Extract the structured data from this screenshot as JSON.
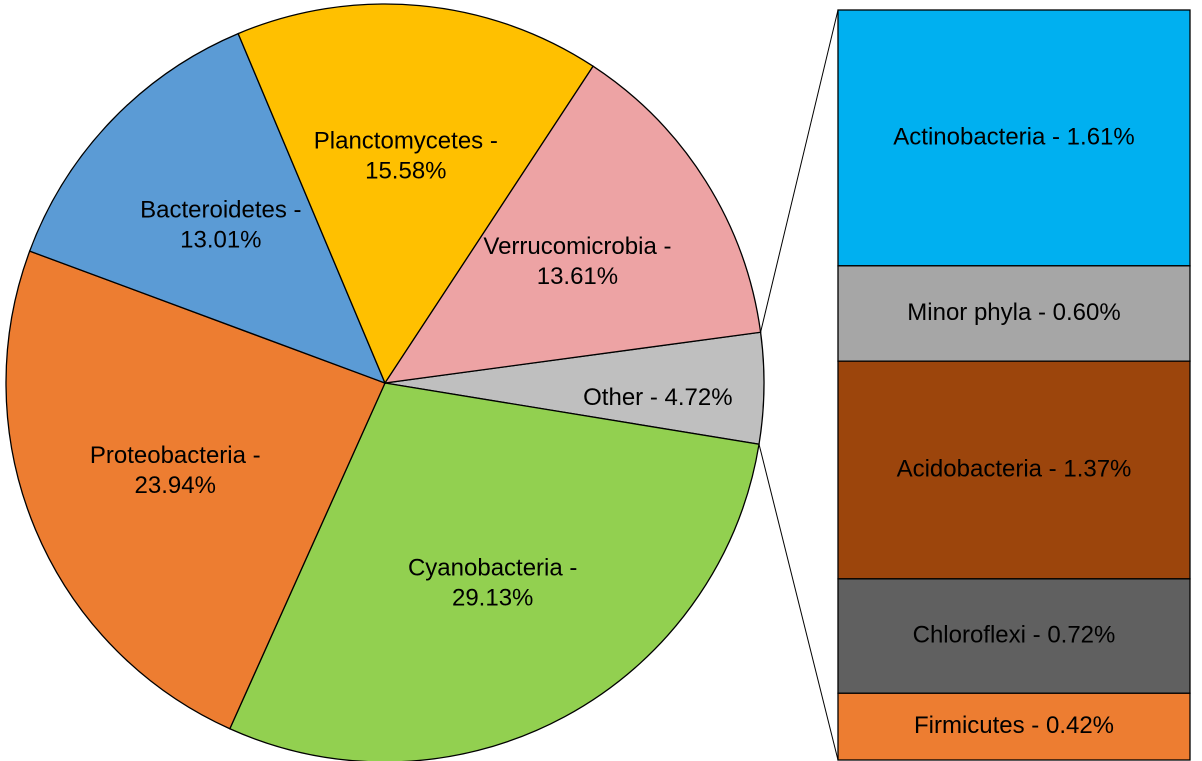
{
  "chart_data": [
    {
      "type": "pie",
      "values": [
        4.72,
        29.13,
        23.94,
        13.01,
        15.58,
        13.61
      ],
      "value_labels": [
        "Other - 4.72%",
        "Cyanobacteria - 29.13%",
        "Proteobacteria - 23.94%",
        "Bacteroidetes - 13.01%",
        "Planctomycetes - 15.58%",
        "Verrucomicrobia - 13.61%"
      ],
      "colors": [
        "#bfbfbf",
        "#92d050",
        "#ed7d31",
        "#5b9bd5",
        "#ffc000",
        "#eda3a4"
      ]
    },
    {
      "type": "bar",
      "values": [
        1.61,
        0.6,
        1.37,
        0.72,
        0.42
      ],
      "value_labels": [
        "Actinobacteria - 1.61%",
        "Minor phyla - 0.60%",
        "Acidobacteria - 1.37%",
        "Chloroflexi - 0.72%",
        "Firmicutes - 0.42%"
      ],
      "colors": [
        "#00b0f0",
        "#a6a6a6",
        "#9c450c",
        "#606060",
        "#ed7d31"
      ]
    }
  ]
}
